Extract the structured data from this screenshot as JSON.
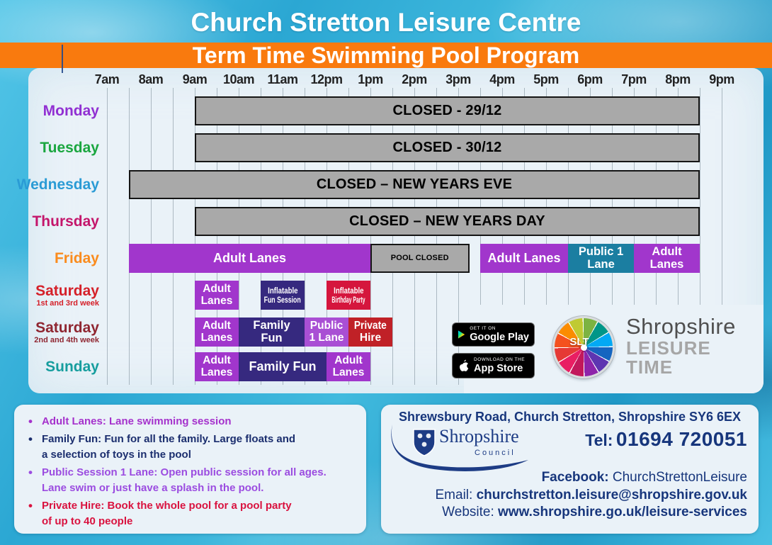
{
  "header": {
    "title": "Church Stretton Leisure Centre",
    "banner": "Term Time Swimming Pool Program"
  },
  "colors": {
    "banner_orange": "#f97a0e",
    "panel_bg": "#eaf2f8",
    "water_base": "#2fa9d4",
    "closed_gray": "#a9a9a9",
    "contact_navy": "#17367c",
    "sessions": {
      "adult": "#a136cc",
      "family": "#36297f",
      "public_teal": "#1b7ea1",
      "public_purple": "#a94fd4",
      "private": "#c02127",
      "party": "#d5163d"
    }
  },
  "chart_data": {
    "type": "table",
    "title": "Term Time Swimming Pool Program",
    "x_axis": {
      "unit": "hour-of-day",
      "start": 7,
      "end": 21,
      "tick_interval": 0.5,
      "labels": [
        "7am",
        "8am",
        "9am",
        "10am",
        "11am",
        "12pm",
        "1pm",
        "2pm",
        "3pm",
        "4pm",
        "5pm",
        "6pm",
        "7pm",
        "8pm",
        "9pm"
      ]
    },
    "rows": [
      {
        "day": "Monday",
        "sub": "",
        "day_color": "#9130d2",
        "sessions": [
          {
            "kind": "closed",
            "label": "CLOSED - 29/12",
            "lines": [
              "CLOSED - 29/12"
            ],
            "start": 9,
            "end": 20.5
          }
        ]
      },
      {
        "day": "Tuesday",
        "sub": "",
        "day_color": "#1aa63f",
        "sessions": [
          {
            "kind": "closed",
            "label": "CLOSED - 30/12",
            "lines": [
              "CLOSED - 30/12"
            ],
            "start": 9,
            "end": 20.5
          }
        ]
      },
      {
        "day": "Wednesday",
        "sub": "",
        "day_color": "#2a9bd5",
        "sessions": [
          {
            "kind": "closed",
            "label": "CLOSED – NEW YEARS EVE",
            "lines": [
              "CLOSED – NEW YEARS EVE"
            ],
            "start": 7.5,
            "end": 20.5
          }
        ]
      },
      {
        "day": "Thursday",
        "sub": "",
        "day_color": "#c4166b",
        "sessions": [
          {
            "kind": "closed",
            "label": "CLOSED – NEW YEARS DAY",
            "lines": [
              "CLOSED – NEW YEARS DAY"
            ],
            "start": 9,
            "end": 20.5
          }
        ]
      },
      {
        "day": "Friday",
        "sub": "",
        "day_color": "#fa8b1d",
        "sessions": [
          {
            "kind": "session",
            "color": "adult",
            "label": "Adult Lanes",
            "lines": [
              "Adult Lanes"
            ],
            "start": 7.5,
            "end": 13
          },
          {
            "kind": "closed",
            "small": true,
            "label": "POOL CLOSED",
            "lines": [
              "POOL CLOSED"
            ],
            "start": 13,
            "end": 15.25
          },
          {
            "kind": "session",
            "color": "adult",
            "label": "Adult Lanes",
            "lines": [
              "Adult Lanes"
            ],
            "start": 15.5,
            "end": 17.5
          },
          {
            "kind": "session",
            "color": "public_teal",
            "label": "Public 1 Lane",
            "lines": [
              "Public 1",
              "Lane"
            ],
            "start": 17.5,
            "end": 19
          },
          {
            "kind": "session",
            "color": "adult",
            "label": "Adult Lanes",
            "lines": [
              "Adult",
              "Lanes"
            ],
            "start": 19,
            "end": 20.5
          }
        ]
      },
      {
        "day": "Saturday",
        "sub": "1st and 3rd week",
        "day_color": "#d52029",
        "sessions": [
          {
            "kind": "session",
            "color": "adult",
            "label": "Adult Lanes",
            "lines": [
              "Adult",
              "Lanes"
            ],
            "start": 9,
            "end": 10
          },
          {
            "kind": "session",
            "color": "family",
            "label": "Inflatable Fun Session",
            "lines": [
              "Inflatable",
              "Fun Session"
            ],
            "start": 10.5,
            "end": 11.5
          },
          {
            "kind": "session",
            "color": "party",
            "label": "Inflatable Birthday Party",
            "lines": [
              "Inflatable",
              "Birthday Party"
            ],
            "start": 12,
            "end": 13
          }
        ]
      },
      {
        "day": "Saturday",
        "sub": "2nd and 4th week",
        "day_color": "#8f2631",
        "sessions": [
          {
            "kind": "session",
            "color": "adult",
            "label": "Adult Lanes",
            "lines": [
              "Adult",
              "Lanes"
            ],
            "start": 9,
            "end": 10
          },
          {
            "kind": "session",
            "color": "family",
            "label": "Family Fun",
            "lines": [
              "Family",
              "Fun"
            ],
            "start": 10,
            "end": 11.5
          },
          {
            "kind": "session",
            "color": "public_purple",
            "label": "Public 1 Lane",
            "lines": [
              "Public",
              "1 Lane"
            ],
            "start": 11.5,
            "end": 12.5
          },
          {
            "kind": "session",
            "color": "private",
            "label": "Private Hire",
            "lines": [
              "Private",
              "Hire"
            ],
            "start": 12.5,
            "end": 13.5
          }
        ]
      },
      {
        "day": "Sunday",
        "sub": "",
        "day_color": "#169d9e",
        "sessions": [
          {
            "kind": "session",
            "color": "adult",
            "label": "Adult Lanes",
            "lines": [
              "Adult",
              "Lanes"
            ],
            "start": 9,
            "end": 10
          },
          {
            "kind": "session",
            "color": "family",
            "label": "Family Fun",
            "lines": [
              "Family Fun"
            ],
            "start": 10,
            "end": 12
          },
          {
            "kind": "session",
            "color": "adult",
            "label": "Adult Lanes",
            "lines": [
              "Adult",
              "Lanes"
            ],
            "start": 12,
            "end": 13
          }
        ]
      }
    ]
  },
  "legend": {
    "items": [
      {
        "color": "#a532cc",
        "text": "Adult Lanes: Lane swimming session"
      },
      {
        "color": "#1b2e6e",
        "text": "Family Fun: Fun for all the family. Large floats and\na selection of toys in the pool"
      },
      {
        "color": "#9b4ce0",
        "text": "Public Session 1 Lane: Open public session for all ages.\nLane swim or just have a splash in the pool."
      },
      {
        "color": "#d9123f",
        "text": "Private Hire: Book the whole pool for a pool party\nof up to 40 people"
      }
    ]
  },
  "badges": {
    "google_play": {
      "tagline": "GET IT ON",
      "store": "Google Play"
    },
    "app_store": {
      "tagline": "Download on the",
      "store": "App Store"
    }
  },
  "slt": {
    "abbr": "SLT",
    "brand": "Shropshire",
    "line2": "LEISURE",
    "line3": "TIME"
  },
  "contact": {
    "address": "Shrewsbury Road, Church Stretton, Shropshire SY6 6EX",
    "council_name": "Shropshire",
    "council_sub": "Council",
    "tel_label": "Tel:",
    "tel_number": "01694 720051",
    "facebook_label": "Facebook:",
    "facebook_value": "ChurchStrettonLeisure",
    "email_label": "Email:",
    "email_value": "churchstretton.leisure@shropshire.gov.uk",
    "website_label": "Website:",
    "website_value": "www.shropshire.go.uk/leisure-services"
  }
}
